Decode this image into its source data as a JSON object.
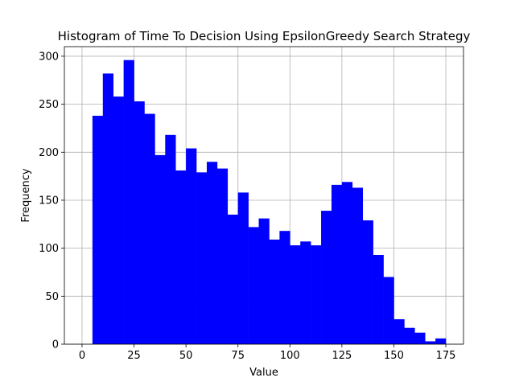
{
  "chart_data": {
    "type": "histogram",
    "title": "Histogram of Time To Decision Using EpsilonGreedy Search Strategy",
    "xlabel": "Value",
    "ylabel": "Frequency",
    "xlim": [
      -8.5,
      183.5
    ],
    "ylim": [
      0,
      310
    ],
    "xticks": [
      0,
      25,
      50,
      75,
      100,
      125,
      150,
      175
    ],
    "yticks": [
      0,
      50,
      100,
      150,
      200,
      250,
      300
    ],
    "grid": true,
    "bar_color": "#0000ff",
    "bin_edges": [
      5,
      10,
      15,
      20,
      25,
      30,
      35,
      40,
      45,
      50,
      55,
      60,
      65,
      70,
      75,
      80,
      85,
      90,
      95,
      100,
      105,
      110,
      115,
      120,
      125,
      130,
      135,
      140,
      145,
      150,
      155,
      160,
      165,
      170,
      175
    ],
    "values": [
      238,
      282,
      258,
      296,
      253,
      240,
      197,
      218,
      181,
      204,
      179,
      190,
      183,
      135,
      158,
      122,
      131,
      109,
      118,
      103,
      107,
      103,
      139,
      166,
      169,
      163,
      129,
      93,
      70,
      26,
      17,
      12,
      3,
      6
    ]
  }
}
